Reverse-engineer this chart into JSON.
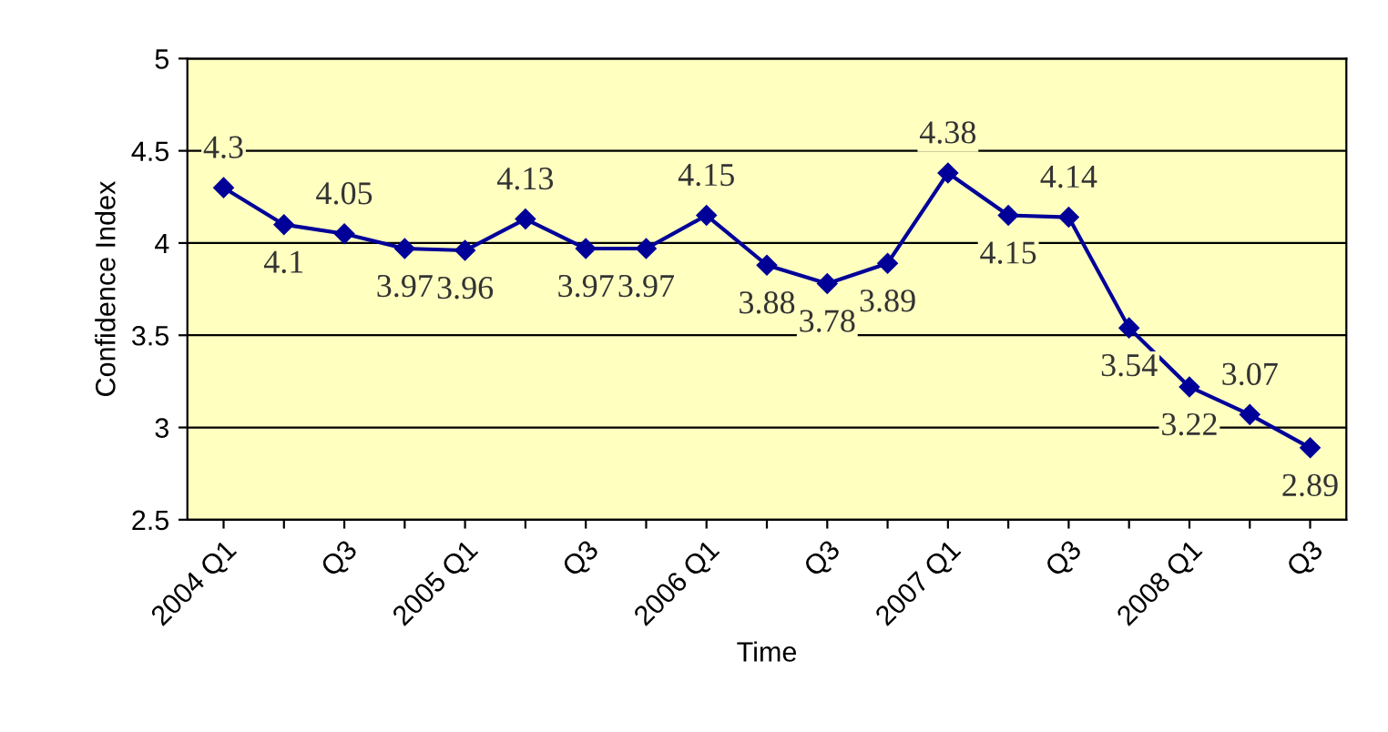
{
  "chart_data": {
    "type": "line",
    "xlabel": "Time",
    "ylabel": "Confidence Index",
    "categories": [
      "2004 Q1",
      null,
      "Q3",
      null,
      "2005 Q1",
      null,
      "Q3",
      null,
      "2006 Q1",
      null,
      "Q3",
      null,
      "2007 Q1",
      null,
      "Q3",
      null,
      "2008 Q1",
      null,
      "Q3"
    ],
    "series": [
      {
        "color": "#000099",
        "values": [
          4.3,
          4.1,
          4.05,
          3.97,
          3.96,
          4.13,
          3.97,
          3.97,
          4.15,
          3.88,
          3.78,
          3.89,
          4.38,
          4.15,
          4.14,
          3.54,
          3.22,
          3.07,
          2.89
        ]
      }
    ],
    "ylim": [
      2.5,
      5
    ],
    "yticks": [
      2.5,
      3,
      3.5,
      4,
      4.5,
      5
    ],
    "grid": "y",
    "marker": "diamond",
    "line_style": "solid",
    "data_labels": true,
    "legend": false
  }
}
